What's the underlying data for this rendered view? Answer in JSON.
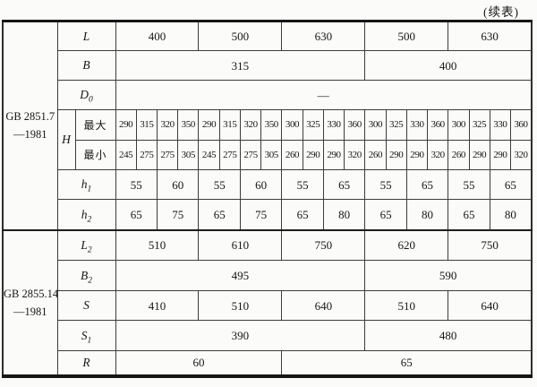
{
  "page": {
    "note": "(续表)"
  },
  "table": {
    "sections": [
      {
        "name": "GB 2851.7",
        "year": "—1981"
      },
      {
        "name": "GB 2855.14",
        "year": "—1981"
      }
    ],
    "rows": {
      "L": {
        "base": "L",
        "sub": "",
        "values": [
          "400",
          "500",
          "630",
          "500",
          "630"
        ]
      },
      "B": {
        "base": "B",
        "sub": "",
        "values": [
          "315",
          "400"
        ]
      },
      "D0": {
        "base": "D",
        "sub": "0",
        "value": "—"
      },
      "H": {
        "base": "H",
        "max_label": "最大",
        "min_label": "最小",
        "max": [
          "290",
          "315",
          "320",
          "350",
          "290",
          "315",
          "320",
          "350",
          "300",
          "325",
          "330",
          "360",
          "300",
          "325",
          "330",
          "360",
          "300",
          "325",
          "330",
          "360"
        ],
        "min": [
          "245",
          "275",
          "275",
          "305",
          "245",
          "275",
          "275",
          "305",
          "260",
          "290",
          "290",
          "320",
          "260",
          "290",
          "290",
          "320",
          "260",
          "290",
          "290",
          "320"
        ]
      },
      "h1": {
        "base": "h",
        "sub": "1",
        "values": [
          "55",
          "60",
          "55",
          "60",
          "55",
          "65",
          "55",
          "65",
          "55",
          "65"
        ]
      },
      "h2": {
        "base": "h",
        "sub": "2",
        "values": [
          "65",
          "75",
          "65",
          "75",
          "65",
          "80",
          "65",
          "80",
          "65",
          "80"
        ]
      },
      "L2": {
        "base": "L",
        "sub": "2",
        "values": [
          "510",
          "610",
          "750",
          "620",
          "750"
        ]
      },
      "B2": {
        "base": "B",
        "sub": "2",
        "values": [
          "495",
          "590"
        ]
      },
      "S": {
        "base": "S",
        "sub": "",
        "values": [
          "410",
          "510",
          "640",
          "510",
          "640"
        ]
      },
      "S1": {
        "base": "S",
        "sub": "1",
        "values": [
          "390",
          "480"
        ]
      },
      "R": {
        "base": "R",
        "sub": "",
        "values": [
          "60",
          "65"
        ]
      }
    }
  }
}
